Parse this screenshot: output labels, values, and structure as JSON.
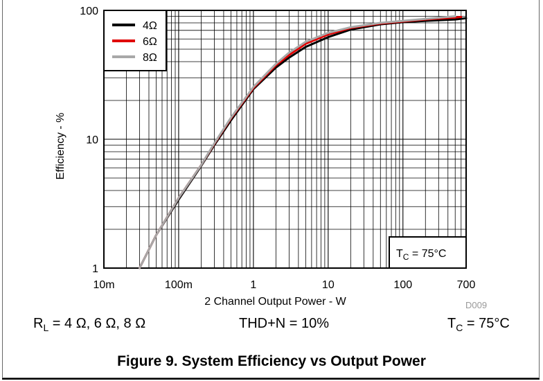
{
  "chart_data": {
    "type": "line",
    "xscale": "log",
    "yscale": "log",
    "xlim": [
      0.01,
      700
    ],
    "ylim": [
      1,
      100
    ],
    "xlabel": "2 Channel Output Power - W",
    "ylabel": "Efficiency - %",
    "x_tick_labels": [
      {
        "value": 0.01,
        "label": "10m"
      },
      {
        "value": 0.1,
        "label": "100m"
      },
      {
        "value": 1,
        "label": "1"
      },
      {
        "value": 10,
        "label": "10"
      },
      {
        "value": 100,
        "label": "100"
      },
      {
        "value": 700,
        "label": "700"
      }
    ],
    "y_tick_labels": [
      {
        "value": 1,
        "label": "1"
      },
      {
        "value": 10,
        "label": "10"
      },
      {
        "value": 100,
        "label": "100"
      }
    ],
    "grid": "on (major and minor)",
    "legend_position": "top-left",
    "series": [
      {
        "name": "4Ω",
        "color": "#000000",
        "x": [
          0.03,
          0.05,
          0.1,
          0.2,
          0.3,
          0.5,
          1,
          2,
          3,
          5,
          10,
          20,
          50,
          100,
          200,
          500,
          700
        ],
        "y": [
          1.0,
          1.8,
          3.4,
          6.2,
          9.0,
          14.0,
          24.5,
          36.0,
          43.0,
          52.0,
          62.0,
          71.0,
          78.0,
          81.0,
          83.0,
          85.0,
          87.0
        ]
      },
      {
        "name": "6Ω",
        "color": "#e00000",
        "x": [
          0.03,
          0.05,
          0.1,
          0.2,
          0.3,
          0.5,
          1,
          2,
          3,
          5,
          10,
          20,
          50,
          100,
          200,
          500,
          600
        ],
        "y": [
          1.0,
          1.8,
          3.5,
          6.3,
          9.2,
          14.5,
          25.0,
          37.5,
          45.0,
          55.0,
          65.0,
          73.0,
          79.0,
          82.0,
          85.0,
          88.0,
          89.0
        ]
      },
      {
        "name": "8Ω",
        "color": "#a8a8a8",
        "x": [
          0.03,
          0.05,
          0.1,
          0.2,
          0.3,
          0.5,
          1,
          2,
          3,
          5,
          10,
          20,
          50,
          100,
          200,
          400,
          500
        ],
        "y": [
          1.0,
          1.8,
          3.5,
          6.3,
          9.3,
          14.7,
          25.5,
          38.5,
          47.0,
          57.0,
          67.0,
          74.0,
          80.0,
          83.0,
          86.0,
          89.0,
          90.0
        ]
      }
    ],
    "annotations": {
      "tc_box": "T_C = 75°C",
      "watermark": "D009"
    }
  },
  "conditions": {
    "rl_main": "R",
    "rl_sub": "L",
    "rl_rest": " = 4 Ω, 6 Ω, 8 Ω",
    "thd": "THD+N = 10%",
    "tc_main": "T",
    "tc_sub": "C",
    "tc_rest": " = 75°C"
  },
  "caption": "Figure 9. System Efficiency vs Output Power"
}
